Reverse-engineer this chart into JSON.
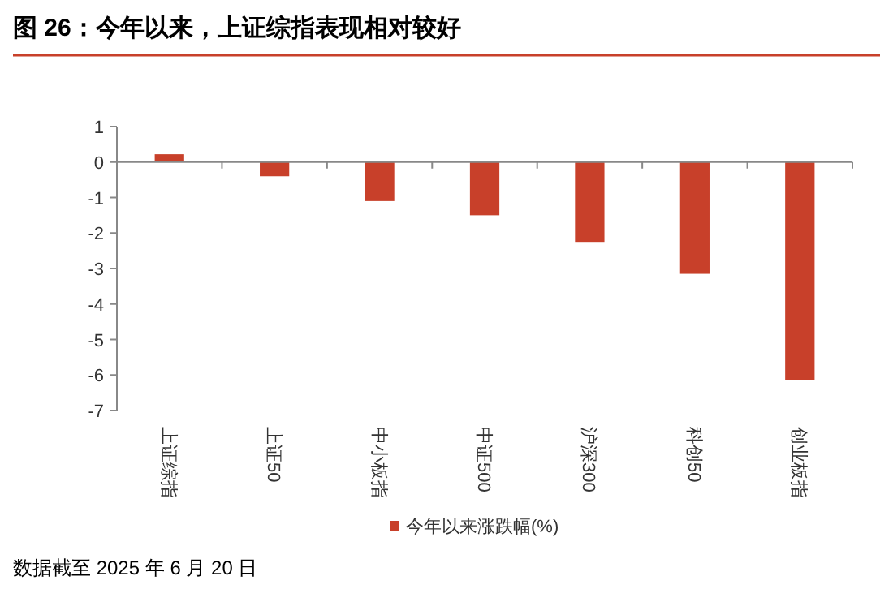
{
  "chart_data": {
    "type": "bar",
    "title": "图 26：今年以来，上证综指表现相对较好",
    "categories": [
      "上证综指",
      "上证50",
      "中小板指",
      "中证500",
      "沪深300",
      "科创50",
      "创业板指"
    ],
    "series": [
      {
        "name": "今年以来涨跌幅(%)",
        "color": "#c8402a",
        "values": [
          0.22,
          -0.4,
          -1.1,
          -1.5,
          -2.25,
          -3.15,
          -6.15
        ]
      }
    ],
    "ylim": [
      -7,
      1
    ],
    "yticks": [
      -7,
      -6,
      -5,
      -4,
      -3,
      -2,
      -1,
      0,
      1
    ],
    "legend": "bottom",
    "annotations": [
      "数据截至 2025 年 6 月 20 日"
    ]
  }
}
